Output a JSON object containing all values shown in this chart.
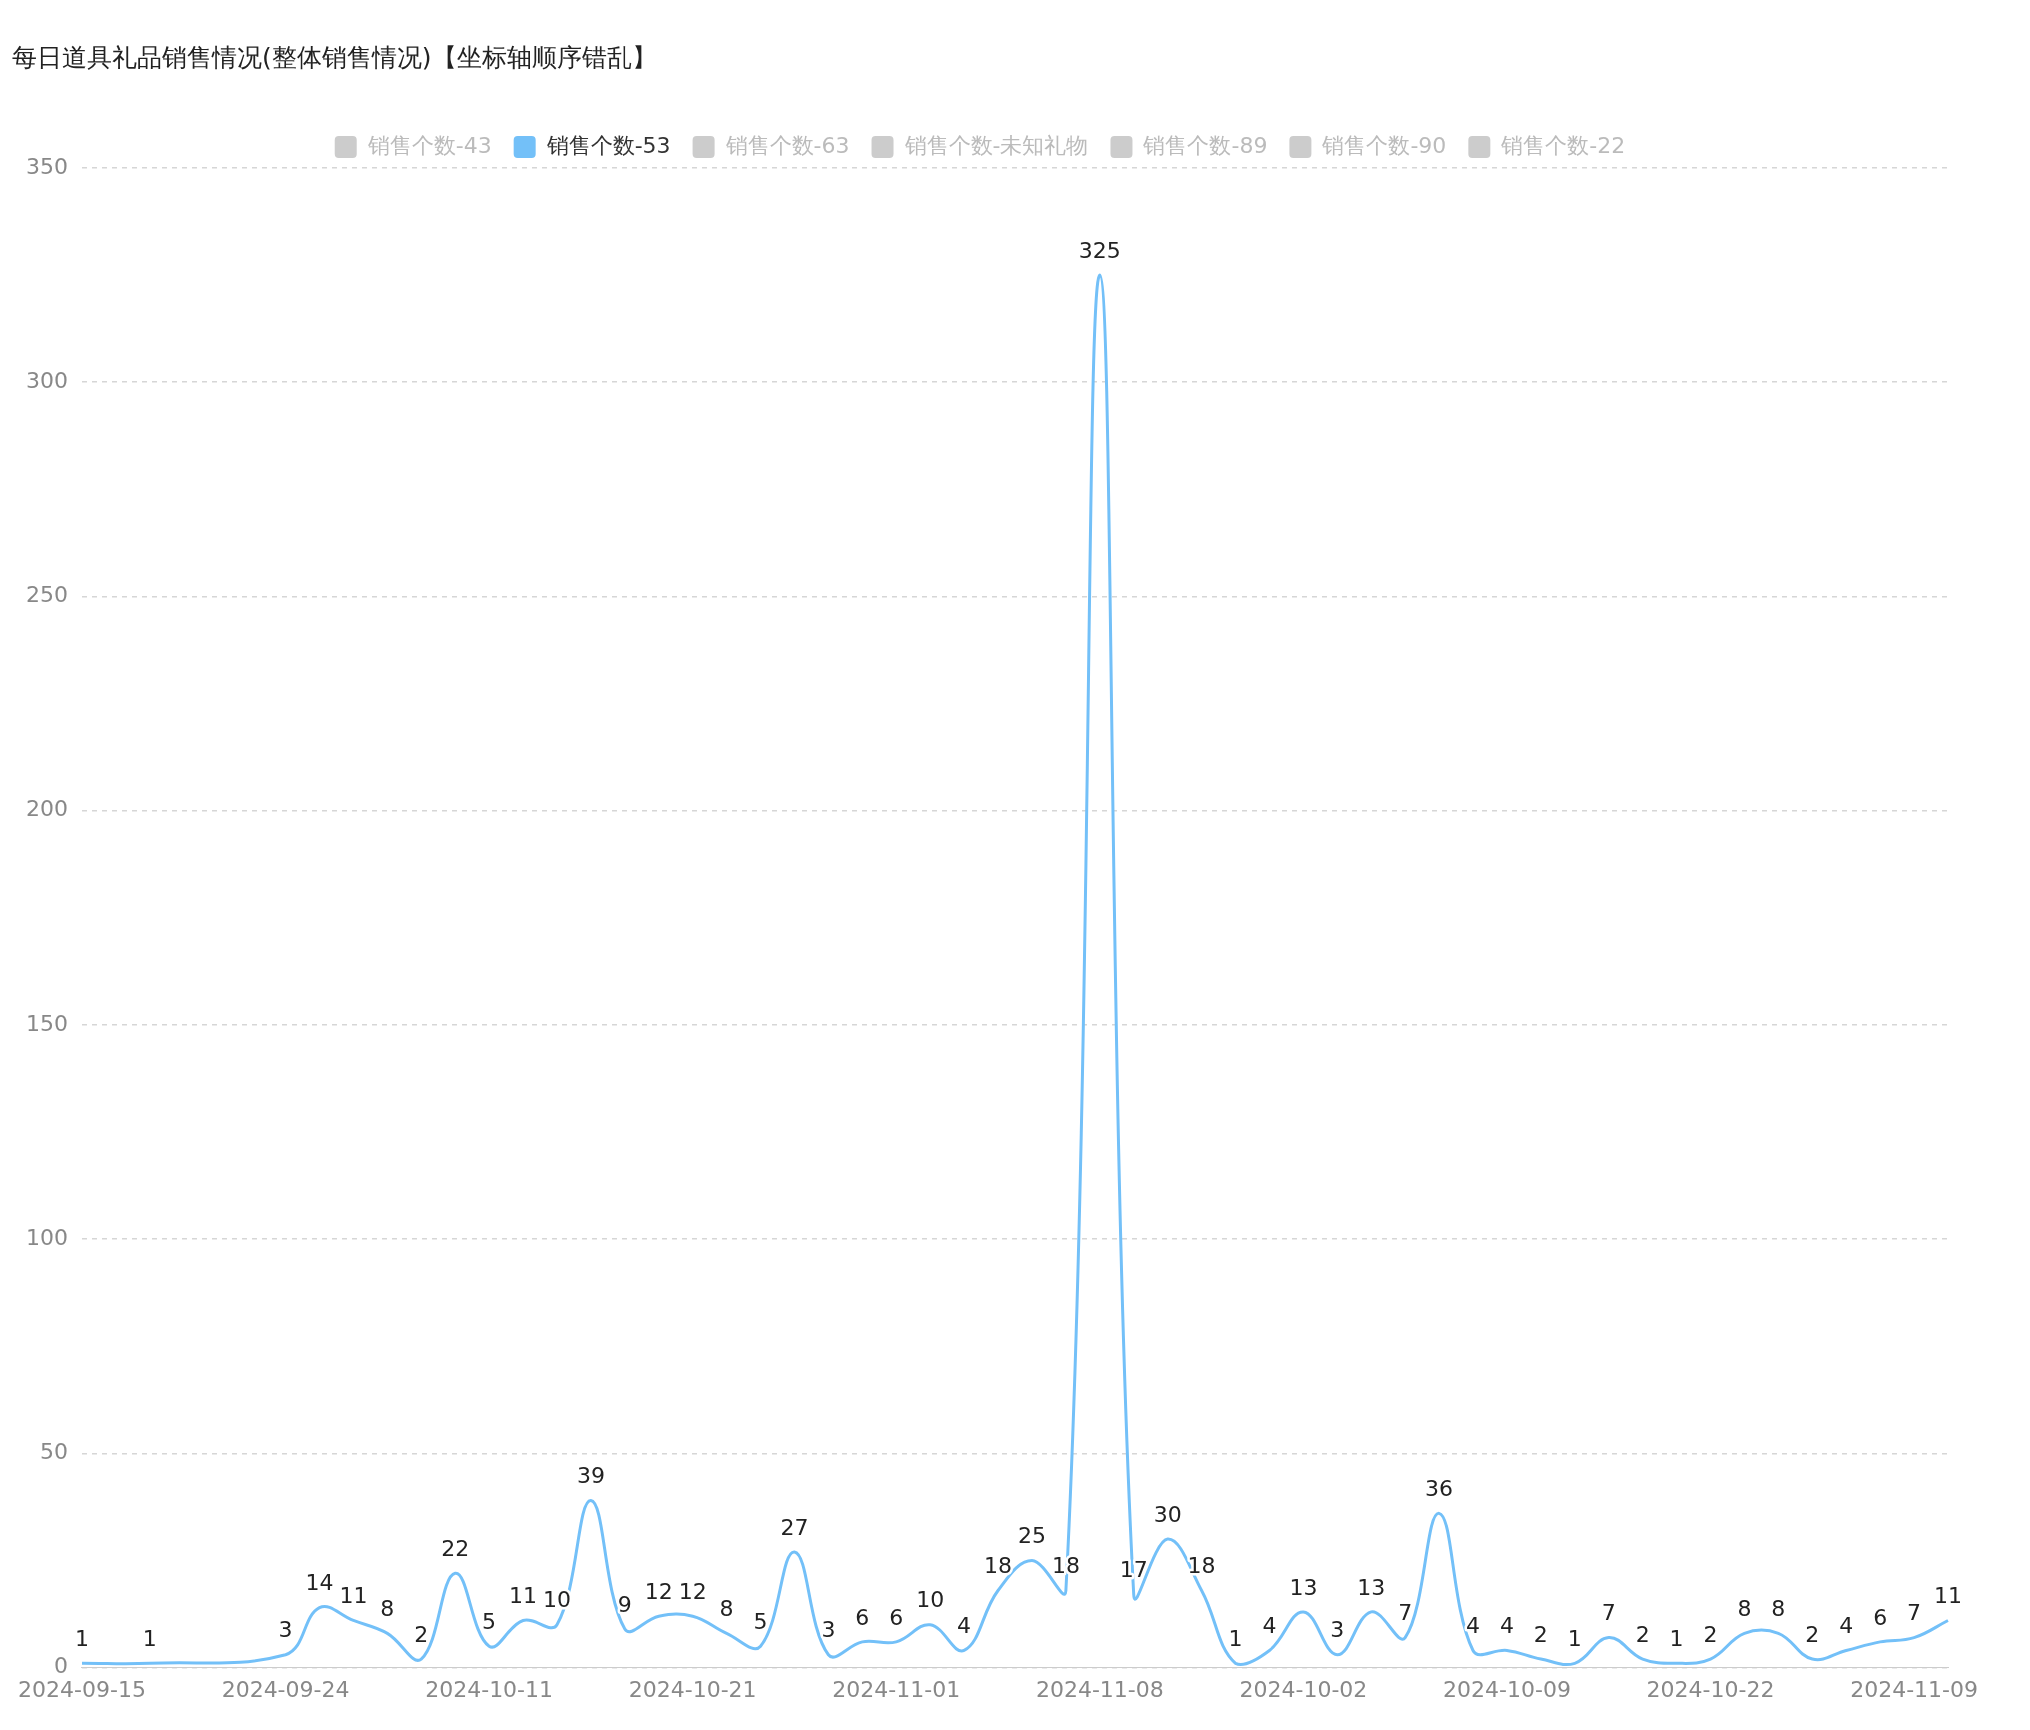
{
  "chart_data": {
    "type": "line",
    "title": "每日道具礼品销售情况(整体销售情况)【坐标轴顺序错乱】",
    "categories": [
      "2024-09-15",
      null,
      null,
      null,
      null,
      null,
      "2024-09-24",
      null,
      null,
      null,
      null,
      null,
      "2024-10-11",
      null,
      null,
      null,
      null,
      null,
      "2024-10-21",
      null,
      null,
      null,
      null,
      null,
      "2024-11-01",
      null,
      null,
      null,
      null,
      null,
      "2024-11-08",
      null,
      null,
      null,
      null,
      null,
      "2024-10-02",
      null,
      null,
      null,
      null,
      null,
      "2024-10-09",
      null,
      null,
      null,
      null,
      null,
      "2024-10-22",
      null,
      null,
      null,
      null,
      null,
      "2024-11-09",
      null
    ],
    "series": [
      {
        "name": "销售个数-43",
        "color": "#cccccc",
        "values": [
          null,
          null,
          null,
          null,
          null,
          null,
          null,
          null,
          null,
          null,
          null,
          null,
          null,
          null,
          null,
          null,
          null,
          null,
          null,
          null,
          null,
          null,
          null,
          null,
          null,
          null,
          null,
          null,
          null,
          null,
          null,
          null,
          null,
          null,
          null,
          null,
          null,
          null,
          null,
          null,
          null,
          null,
          null,
          null,
          null,
          null,
          null,
          null,
          null,
          null,
          null,
          null,
          null,
          null,
          null,
          null
        ]
      },
      {
        "name": "销售个数-53",
        "color": "#73c0f8",
        "values": [
          1,
          null,
          1,
          null,
          null,
          null,
          3,
          14,
          11,
          8,
          2,
          22,
          5,
          11,
          10,
          39,
          9,
          12,
          12,
          8,
          5,
          27,
          3,
          6,
          6,
          10,
          4,
          18,
          25,
          18,
          325,
          17,
          30,
          18,
          1,
          4,
          13,
          3,
          13,
          7,
          36,
          4,
          4,
          2,
          1,
          7,
          2,
          1,
          2,
          8,
          8,
          2,
          4,
          6,
          7,
          11
        ]
      },
      {
        "name": "销售个数-63",
        "color": "#cccccc",
        "values": [
          null,
          null,
          null,
          null,
          null,
          null,
          null,
          null,
          null,
          null,
          null,
          null,
          null,
          null,
          null,
          null,
          null,
          null,
          null,
          null,
          null,
          null,
          null,
          null,
          null,
          null,
          null,
          null,
          null,
          null,
          null,
          null,
          null,
          null,
          null,
          null,
          null,
          null,
          null,
          null,
          null,
          null,
          null,
          null,
          null,
          null,
          null,
          null,
          null,
          null,
          null,
          null,
          null,
          null,
          null,
          null
        ]
      },
      {
        "name": "销售个数-未知礼物",
        "color": "#cccccc",
        "values": [
          null,
          null,
          null,
          null,
          null,
          null,
          null,
          null,
          null,
          null,
          null,
          null,
          null,
          null,
          null,
          null,
          null,
          null,
          null,
          null,
          null,
          null,
          null,
          null,
          null,
          null,
          null,
          null,
          null,
          null,
          null,
          null,
          null,
          null,
          null,
          null,
          null,
          null,
          null,
          null,
          null,
          null,
          null,
          null,
          null,
          null,
          null,
          null,
          null,
          null,
          null,
          null,
          null,
          null,
          null,
          null
        ]
      },
      {
        "name": "销售个数-89",
        "color": "#cccccc",
        "values": [
          null,
          null,
          null,
          null,
          null,
          null,
          null,
          null,
          null,
          null,
          null,
          null,
          null,
          null,
          null,
          null,
          null,
          null,
          null,
          null,
          null,
          null,
          null,
          null,
          null,
          null,
          null,
          null,
          null,
          null,
          null,
          null,
          null,
          null,
          null,
          null,
          null,
          null,
          null,
          null,
          null,
          null,
          null,
          null,
          null,
          null,
          null,
          null,
          null,
          null,
          null,
          null,
          null,
          null,
          null,
          null
        ]
      },
      {
        "name": "销售个数-90",
        "color": "#cccccc",
        "values": [
          null,
          null,
          null,
          null,
          null,
          null,
          null,
          null,
          null,
          null,
          null,
          null,
          null,
          null,
          null,
          null,
          null,
          null,
          null,
          null,
          null,
          null,
          null,
          null,
          null,
          null,
          null,
          null,
          null,
          null,
          null,
          null,
          null,
          null,
          null,
          null,
          null,
          null,
          null,
          null,
          null,
          null,
          null,
          null,
          null,
          null,
          null,
          null,
          null,
          null,
          null,
          null,
          null,
          null,
          null,
          null
        ]
      },
      {
        "name": "销售个数-22",
        "color": "#cccccc",
        "values": [
          null,
          null,
          null,
          null,
          null,
          null,
          null,
          null,
          null,
          null,
          null,
          null,
          null,
          null,
          null,
          null,
          null,
          null,
          null,
          null,
          null,
          null,
          null,
          null,
          null,
          null,
          null,
          null,
          null,
          null,
          null,
          null,
          null,
          null,
          null,
          null,
          null,
          null,
          null,
          null,
          null,
          null,
          null,
          null,
          null,
          null,
          null,
          null,
          null,
          null,
          null,
          null,
          null,
          null,
          null,
          null
        ]
      }
    ],
    "ylim": [
      0,
      350
    ],
    "yticks": [
      0,
      50,
      100,
      150,
      200,
      250,
      300,
      350
    ],
    "grid": "y",
    "legend": "top",
    "marker": "none",
    "line_style": "solid",
    "data_labels": true
  }
}
